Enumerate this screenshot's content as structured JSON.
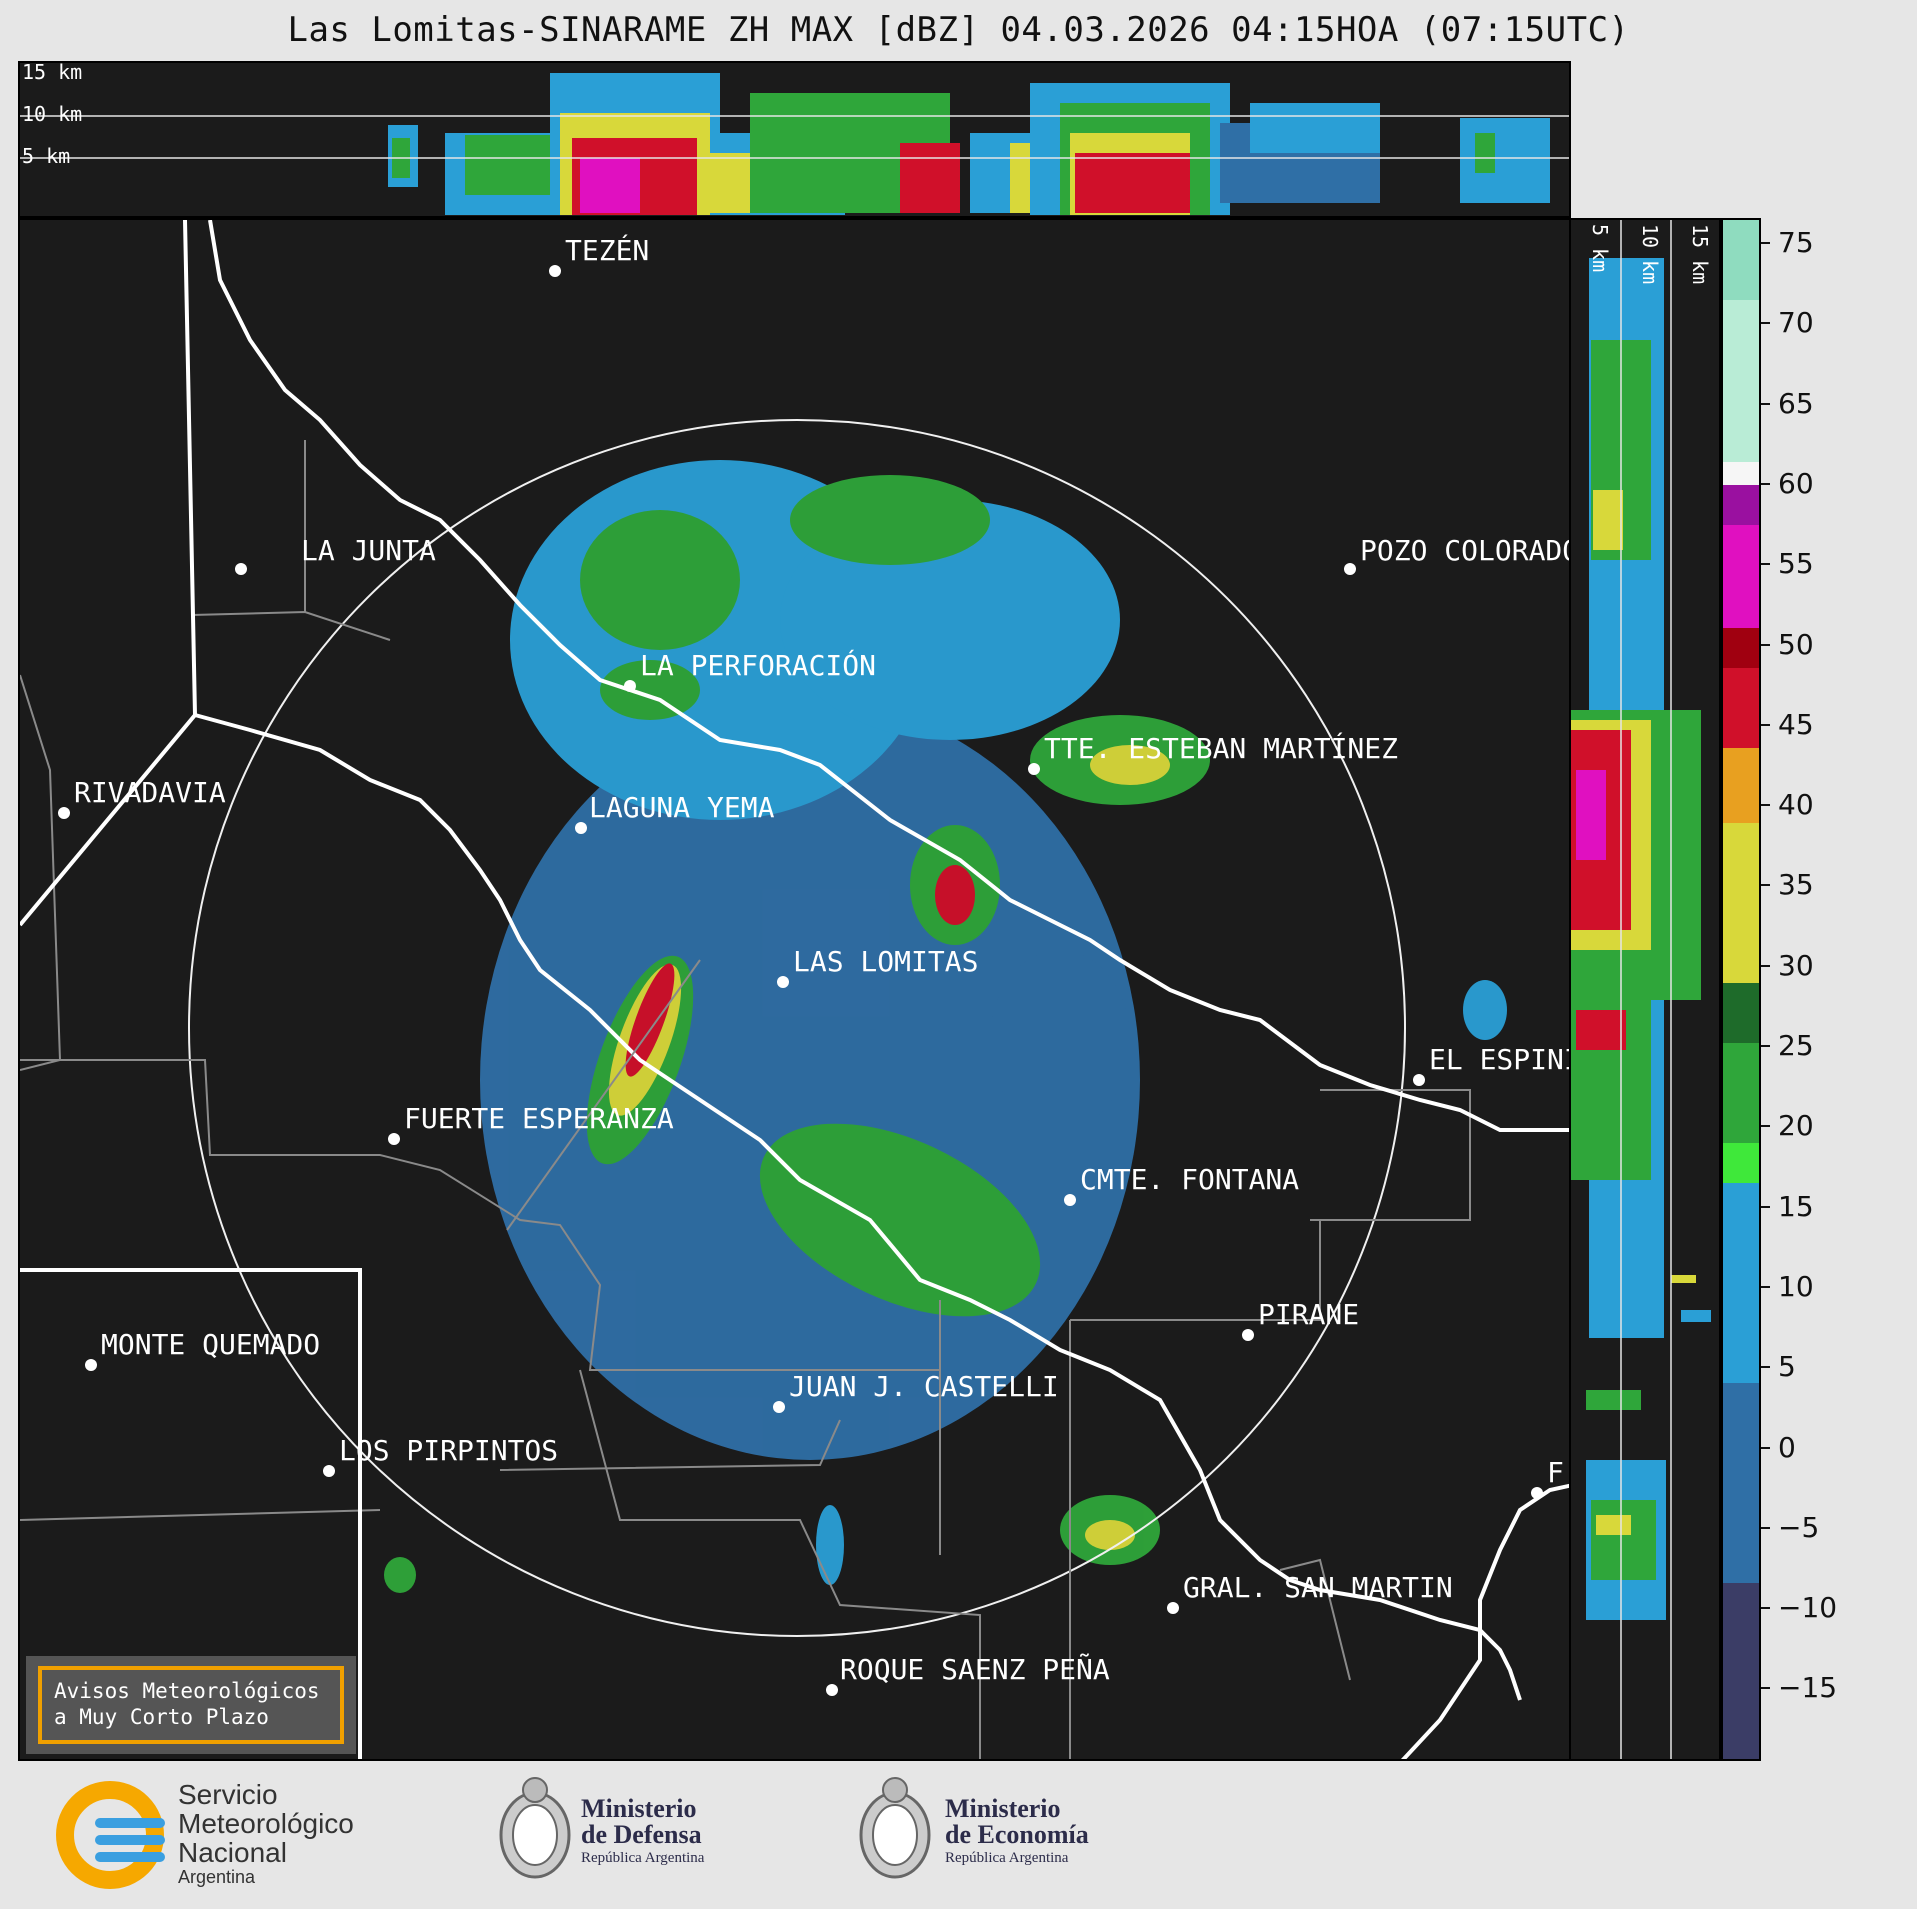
{
  "title": "Las Lomitas-SINARAME ZH MAX [dBZ] 04.03.2026 04:15HOA (07:15UTC)",
  "top_panel": {
    "altitude_labels": [
      "15 km",
      "10 km",
      "5 km"
    ]
  },
  "side_panel": {
    "altitude_labels": [
      "5 km",
      "10 km",
      "15 km"
    ]
  },
  "colorbar": {
    "unit": "dBZ",
    "ticks": [
      "75",
      "70",
      "65",
      "60",
      "55",
      "50",
      "45",
      "40",
      "35",
      "30",
      "25",
      "20",
      "15",
      "10",
      "5",
      "0",
      "−5",
      "−10",
      "−15"
    ],
    "range": [
      -20,
      77
    ],
    "colors": {
      "neg20_0": "#3b3d66",
      "0_10": "#2f6fa6",
      "10_17": "#2a9fd6",
      "17_30": "#2fa63a",
      "30_40": "#d8d83a",
      "40_48": "#e8a020",
      "48_52": "#d0102a",
      "52_58": "#e010c0",
      "58_60": "#f6f6f6",
      "60_77": "#b9ecd6"
    }
  },
  "places": [
    {
      "name": "TEZÉN"
    },
    {
      "name": "LA JUNTA"
    },
    {
      "name": "POZO COLORADO"
    },
    {
      "name": "LA PERFORACIÓN"
    },
    {
      "name": "RIVADAVIA"
    },
    {
      "name": "TTE. ESTEBAN MARTÍNEZ"
    },
    {
      "name": "LAGUNA YEMA"
    },
    {
      "name": "LAS LOMITAS"
    },
    {
      "name": "EL ESPINILLO"
    },
    {
      "name": "FUERTE ESPERANZA"
    },
    {
      "name": "CMTE. FONTANA"
    },
    {
      "name": "PIRANE"
    },
    {
      "name": "MONTE QUEMADO"
    },
    {
      "name": "JUAN J. CASTELLI"
    },
    {
      "name": "LOS PIRPINTOS"
    },
    {
      "name": "GRAL. SAN MARTIN"
    },
    {
      "name": "ROQUE SAENZ PEÑA"
    },
    {
      "name": "F"
    }
  ],
  "alert_box": {
    "line1": "Avisos Meteorológicos",
    "line2": "a Muy Corto Plazo"
  },
  "logos": {
    "smn": {
      "line1": "Servicio",
      "line2": "Meteorológico",
      "line3": "Nacional",
      "line4": "Argentina"
    },
    "defensa": {
      "line1": "Ministerio",
      "line2": "de Defensa",
      "line3": "República Argentina"
    },
    "economia": {
      "line1": "Ministerio",
      "line2": "de Economía",
      "line3": "República Argentina"
    }
  },
  "colors": {
    "map_background": "#1b1b1b",
    "page_background": "#e6e6e6",
    "alert_border": "#f0a000",
    "smn_orange": "#f6a800",
    "smn_blue": "#3a9fe0"
  }
}
